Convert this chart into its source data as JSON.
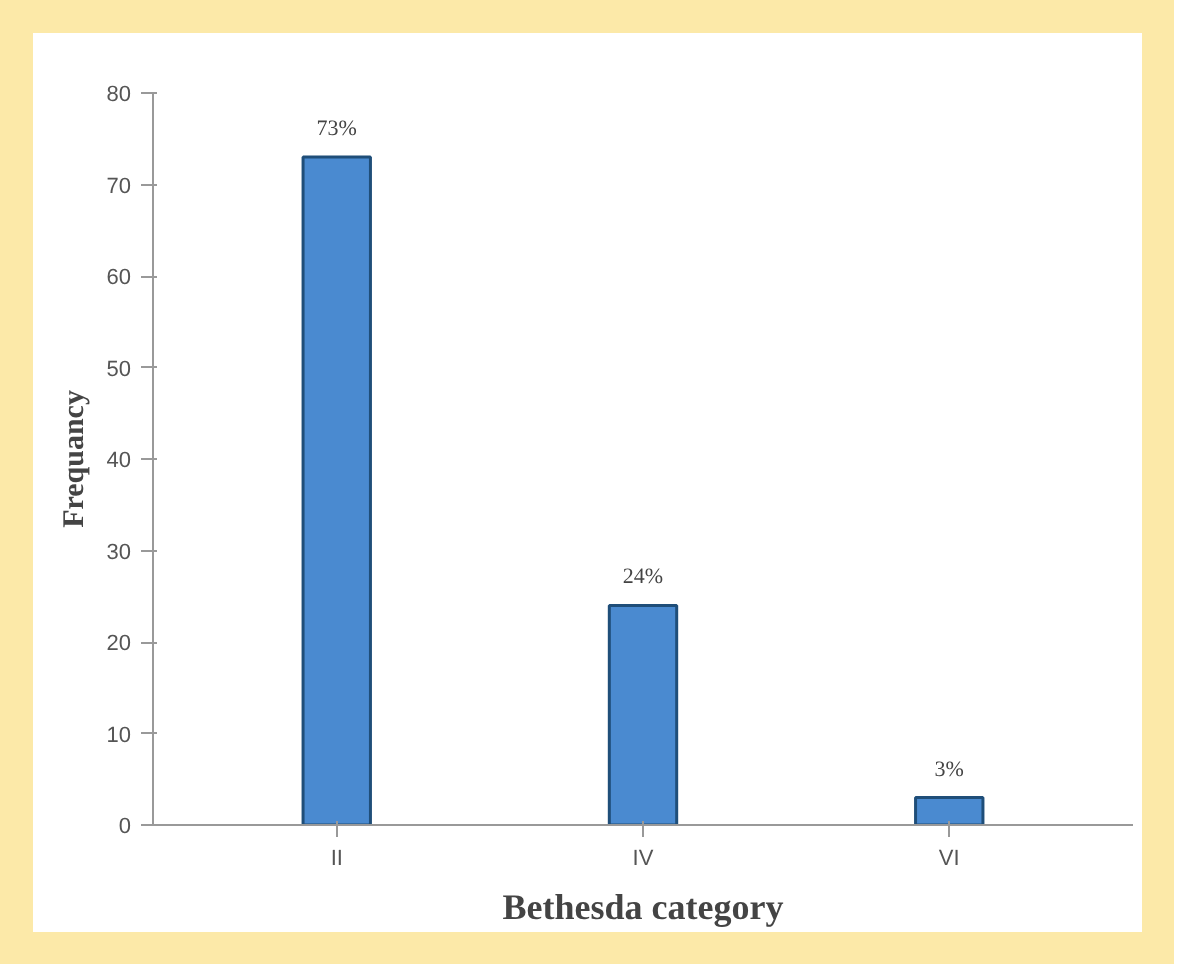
{
  "chart_data": {
    "type": "bar",
    "xlabel": "Bethesda category",
    "ylabel": "Frequancy",
    "categories": [
      "II",
      "IV",
      "VI"
    ],
    "values": [
      73,
      24,
      3
    ],
    "value_labels": [
      "73%",
      "24%",
      "3%"
    ],
    "color": "#4a8ad0",
    "ylim": [
      0,
      80
    ],
    "yticks": [
      0,
      10,
      20,
      30,
      40,
      50,
      60,
      70,
      80
    ],
    "grid": false
  }
}
